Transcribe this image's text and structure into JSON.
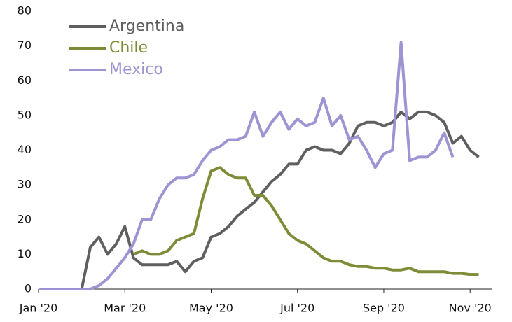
{
  "chart_data": {
    "type": "line",
    "x": [
      0,
      0.2,
      0.4,
      0.6,
      0.8,
      1.0,
      1.2,
      1.4,
      1.6,
      1.8,
      2.0,
      2.2,
      2.4,
      2.6,
      2.8,
      3.0,
      3.2,
      3.4,
      3.6,
      3.8,
      4.0,
      4.2,
      4.4,
      4.6,
      4.8,
      5.0,
      5.2,
      5.4,
      5.6,
      5.8,
      6.0,
      6.2,
      6.4,
      6.6,
      6.8,
      7.0,
      7.2,
      7.4,
      7.6,
      7.8,
      8.0,
      8.2,
      8.4,
      8.6,
      8.8,
      9.0,
      9.2,
      9.4,
      9.6,
      9.8,
      10.0,
      10.2
    ],
    "series": [
      {
        "name": "Argentina",
        "color": "#5f5f5f",
        "values": [
          0,
          0,
          0,
          0,
          0,
          0,
          12,
          15,
          10,
          13,
          18,
          9,
          7,
          7,
          7,
          7,
          8,
          5,
          8,
          9,
          15,
          16,
          18,
          21,
          23,
          25,
          28,
          31,
          33,
          36,
          36,
          40,
          41,
          40,
          40,
          39,
          42,
          47,
          48,
          48,
          47,
          48,
          51,
          49,
          51,
          51,
          50,
          48,
          42,
          44,
          40,
          38
        ]
      },
      {
        "name": "Chile",
        "color": "#7f8b36",
        "values": [
          null,
          null,
          null,
          null,
          null,
          null,
          null,
          null,
          null,
          null,
          null,
          10,
          11,
          10,
          10,
          11,
          14,
          15,
          16,
          26,
          34,
          35,
          33,
          32,
          32,
          27,
          27,
          24,
          20,
          16,
          14,
          13,
          11,
          9,
          8,
          8,
          7,
          6.5,
          6.5,
          6,
          6,
          5.5,
          5.5,
          6,
          5,
          5,
          5,
          5,
          4.5,
          4.5,
          4.2,
          4.2
        ]
      },
      {
        "name": "Mexico",
        "color": "#9e93d3",
        "values": [
          0,
          0,
          0,
          0,
          0,
          0,
          0,
          1,
          3,
          6,
          9,
          13,
          20,
          20,
          26,
          30,
          32,
          32,
          33,
          37,
          40,
          41,
          43,
          43,
          44,
          51,
          44,
          48,
          51,
          46,
          49,
          47,
          48,
          55,
          47,
          50,
          43,
          44,
          40,
          35,
          39,
          40,
          71,
          37,
          38,
          38,
          40,
          45,
          38,
          null,
          null,
          null
        ]
      }
    ],
    "xlim": [
      0,
      10.5
    ],
    "xticks": [
      {
        "value": 0,
        "label": "Jan '20"
      },
      {
        "value": 2,
        "label": "Mar '20"
      },
      {
        "value": 4,
        "label": "May '20"
      },
      {
        "value": 6,
        "label": "Jul '20"
      },
      {
        "value": 8,
        "label": "Sep '20"
      },
      {
        "value": 10,
        "label": "Nov '20"
      }
    ],
    "ylim": [
      0,
      80
    ],
    "yticks": [
      0,
      10,
      20,
      30,
      40,
      50,
      60,
      70,
      80
    ],
    "legend": "top-left",
    "grid": false
  }
}
